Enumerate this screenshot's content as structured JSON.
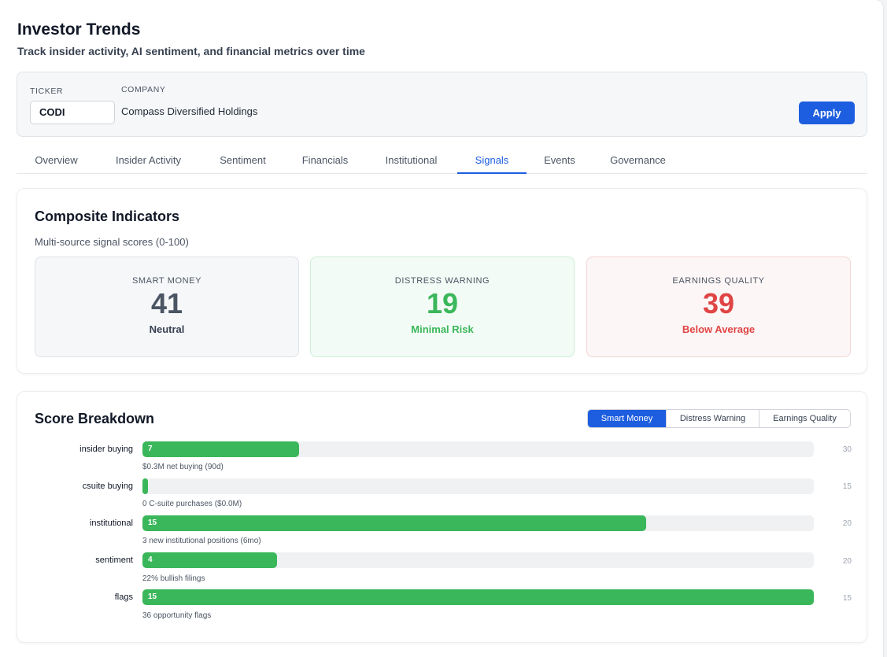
{
  "header": {
    "title": "Investor Trends",
    "subtitle": "Track insider activity, AI sentiment, and financial metrics over time"
  },
  "filters": {
    "ticker_label": "TICKER",
    "ticker_value": "CODI",
    "company_label": "COMPANY",
    "company_value": "Compass Diversified Holdings",
    "apply_label": "Apply"
  },
  "tabs": [
    {
      "label": "Overview",
      "active": false
    },
    {
      "label": "Insider Activity",
      "active": false
    },
    {
      "label": "Sentiment",
      "active": false
    },
    {
      "label": "Financials",
      "active": false
    },
    {
      "label": "Institutional",
      "active": false
    },
    {
      "label": "Signals",
      "active": true
    },
    {
      "label": "Events",
      "active": false
    },
    {
      "label": "Governance",
      "active": false
    }
  ],
  "composite": {
    "title": "Composite Indicators",
    "subtitle": "Multi-source signal scores (0-100)",
    "indicators": [
      {
        "label": "SMART MONEY",
        "value": "41",
        "state": "Neutral",
        "color": "#4b5563",
        "state_color": "#374151",
        "bg": "#f6f7f9",
        "border": "#dfe3e8"
      },
      {
        "label": "DISTRESS WARNING",
        "value": "19",
        "state": "Minimal Risk",
        "color": "#3bb75b",
        "state_color": "#3bb75b",
        "bg": "#f2fbf5",
        "border": "#cdeed7"
      },
      {
        "label": "EARNINGS QUALITY",
        "value": "39",
        "state": "Below Average",
        "color": "#e04545",
        "state_color": "#e04545",
        "bg": "#fdf6f6",
        "border": "#f3d5d5"
      }
    ]
  },
  "breakdown": {
    "title": "Score Breakdown",
    "toggle": [
      {
        "label": "Smart Money",
        "active": true
      },
      {
        "label": "Distress Warning",
        "active": false
      },
      {
        "label": "Earnings Quality",
        "active": false
      }
    ],
    "rows": [
      {
        "label": "insider buying",
        "score": 7,
        "max": 30,
        "value_text": "7",
        "max_text": "30",
        "note": "$0.3M net buying (90d)"
      },
      {
        "label": "csuite buying",
        "score": 0,
        "max": 15,
        "value_text": "",
        "max_text": "15",
        "note": "0 C-suite purchases ($0.0M)"
      },
      {
        "label": "institutional",
        "score": 15,
        "max": 20,
        "value_text": "15",
        "max_text": "20",
        "note": "3 new institutional positions (6mo)"
      },
      {
        "label": "sentiment",
        "score": 4,
        "max": 20,
        "value_text": "4",
        "max_text": "20",
        "note": "22% bullish filings"
      },
      {
        "label": "flags",
        "score": 15,
        "max": 15,
        "value_text": "15",
        "max_text": "15",
        "note": "36 opportunity flags"
      }
    ],
    "bar_color": "#3bb75b"
  }
}
